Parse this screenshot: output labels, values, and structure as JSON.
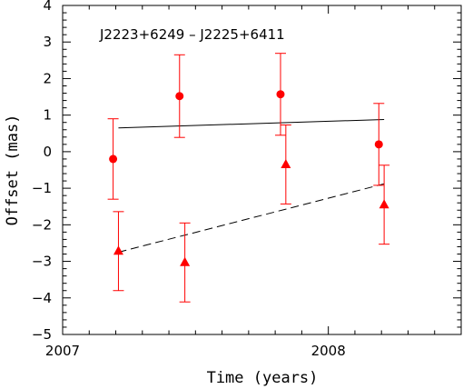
{
  "chart_data": {
    "type": "scatter",
    "title": "J2223+6249  –  J2225+6411",
    "xlabel": "Time (years)",
    "ylabel": "Offset (mas)",
    "xlim": [
      2007.0,
      2008.5
    ],
    "ylim": [
      -5,
      4
    ],
    "x_ticks": [
      2007,
      2008
    ],
    "x_tick_labels": [
      "2007",
      "2008"
    ],
    "y_ticks": [
      -5,
      -4,
      -3,
      -2,
      -1,
      0,
      1,
      2,
      3,
      4
    ],
    "y_tick_labels": [
      "−5",
      "−4",
      "−3",
      "−2",
      "−1",
      "0",
      "1",
      "2",
      "3",
      "4"
    ],
    "grid": false,
    "series": [
      {
        "marker": "circle",
        "color": "#ff0000",
        "points": [
          {
            "x": 2007.19,
            "y": -0.2,
            "err": 1.1
          },
          {
            "x": 2007.44,
            "y": 1.52,
            "err": 1.13
          },
          {
            "x": 2007.82,
            "y": 1.57,
            "err": 1.12
          },
          {
            "x": 2008.19,
            "y": 0.2,
            "err": 1.12
          }
        ],
        "fit": {
          "x": [
            2007.21,
            2008.21
          ],
          "y": [
            0.65,
            0.88
          ],
          "style": "solid",
          "color": "#000000"
        }
      },
      {
        "marker": "triangle",
        "color": "#ff0000",
        "points": [
          {
            "x": 2007.21,
            "y": -2.72,
            "err": 1.08
          },
          {
            "x": 2007.46,
            "y": -3.03,
            "err": 1.08
          },
          {
            "x": 2007.84,
            "y": -0.35,
            "err": 1.08
          },
          {
            "x": 2008.21,
            "y": -1.45,
            "err": 1.08
          }
        ],
        "fit": {
          "x": [
            2007.21,
            2008.21
          ],
          "y": [
            -2.75,
            -0.88
          ],
          "style": "dashed",
          "color": "#000000"
        }
      }
    ]
  }
}
